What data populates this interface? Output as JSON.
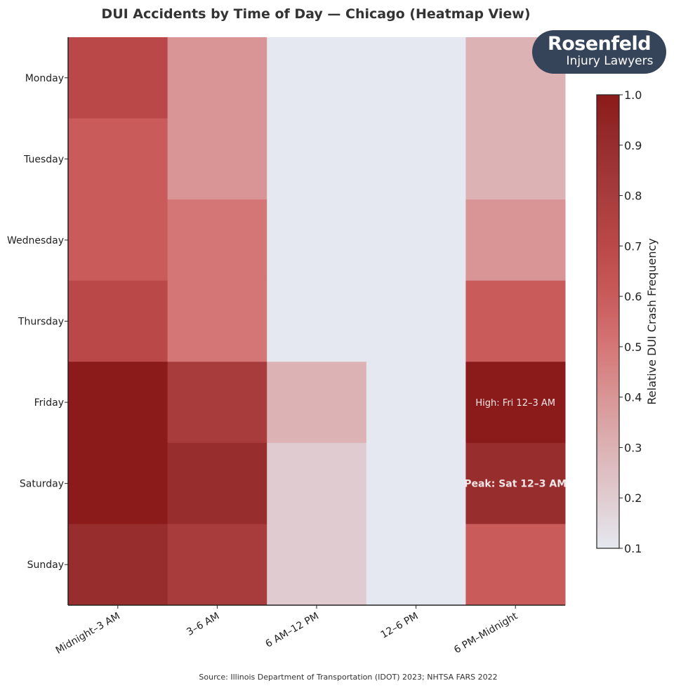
{
  "chart_data": {
    "type": "heatmap",
    "title": "DUI Accidents by Time of Day — Chicago (Heatmap View)",
    "x_categories": [
      "Midnight–3 AM",
      "3–6 AM",
      "6 AM–12 PM",
      "12–6 PM",
      "6 PM–Midnight"
    ],
    "y_categories": [
      "Monday",
      "Tuesday",
      "Wednesday",
      "Thursday",
      "Friday",
      "Saturday",
      "Sunday"
    ],
    "values": [
      [
        0.7,
        0.4,
        0.1,
        0.1,
        0.3
      ],
      [
        0.6,
        0.4,
        0.1,
        0.1,
        0.3
      ],
      [
        0.6,
        0.5,
        0.1,
        0.1,
        0.4
      ],
      [
        0.7,
        0.5,
        0.1,
        0.1,
        0.6
      ],
      [
        1.0,
        0.8,
        0.3,
        0.1,
        1.0
      ],
      [
        1.0,
        0.9,
        0.2,
        0.1,
        0.9
      ],
      [
        0.9,
        0.8,
        0.2,
        0.1,
        0.6
      ]
    ],
    "colorbar": {
      "label": "Relative DUI Crash Frequency",
      "range": [
        0.1,
        1.0
      ],
      "ticks": [
        "0.1",
        "0.2",
        "0.3",
        "0.4",
        "0.5",
        "0.6",
        "0.7",
        "0.8",
        "0.9",
        "1.0"
      ],
      "colors": [
        "#e5e8f0",
        "#e0ccd0",
        "#dcb2b4",
        "#d99595",
        "#d57676",
        "#c95b5b",
        "#bb4848",
        "#a83c3c",
        "#982d2d",
        "#8b1a1a"
      ]
    },
    "annotations": [
      {
        "text": "High: Fri 12–3 AM",
        "row": "Friday",
        "col": "6 PM–Midnight",
        "weight": "normal"
      },
      {
        "text": "Peak: Sat 12–3 AM",
        "row": "Saturday",
        "col": "6 PM–Midnight",
        "weight": "bold"
      }
    ],
    "source": "Source: Illinois Department of Transportation (IDOT) 2023; NHTSA FARS 2022"
  },
  "logo": {
    "line1": "Rosenfeld",
    "line2": "Injury Lawyers"
  }
}
